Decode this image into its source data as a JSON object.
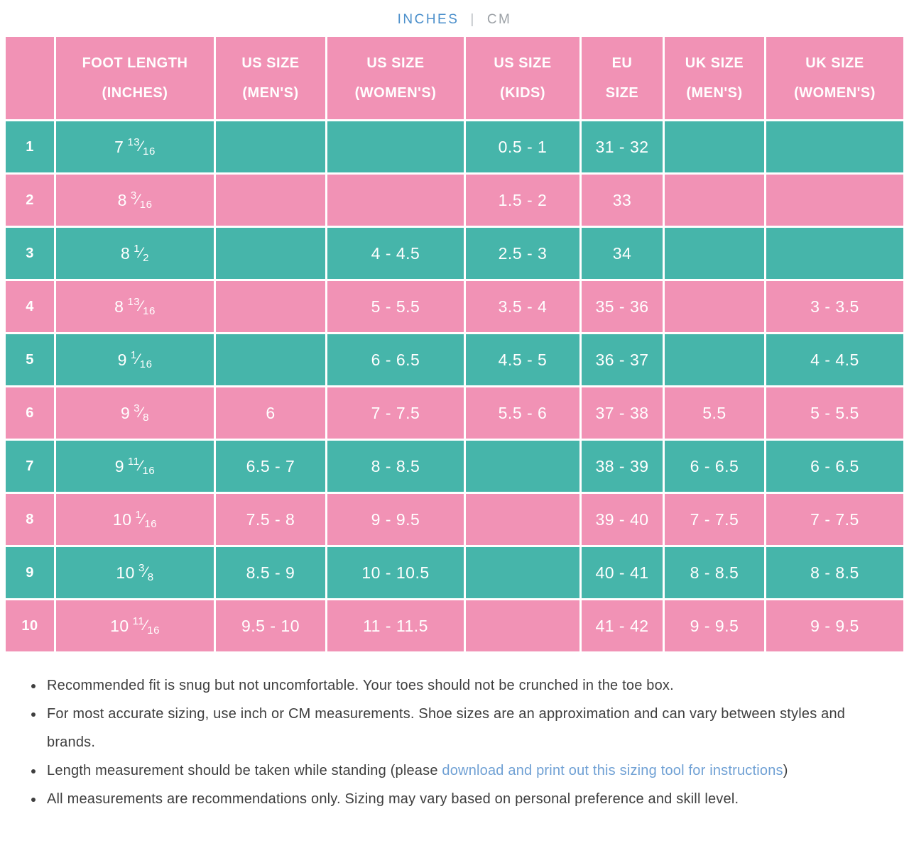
{
  "toggle": {
    "inches": "INCHES",
    "divider": "|",
    "cm": "CM"
  },
  "colors": {
    "pink": "#f192b5",
    "teal": "#46b5aa",
    "link_blue": "#6fa0d4",
    "toggle_active_blue": "#4b8fcb",
    "toggle_inactive_gray": "#9ca1a6",
    "cell_text": "#ffffff",
    "note_text": "#3e3e3e"
  },
  "table": {
    "headers": {
      "row_num": "",
      "foot_length": "FOOT LENGTH\n(INCHES)",
      "us_mens": "US SIZE\n(MEN'S)",
      "us_womens": "US SIZE\n(WOMEN'S)",
      "us_kids": "US SIZE\n(KIDS)",
      "eu": "EU\nSIZE",
      "uk_mens": "UK SIZE\n(MEN'S)",
      "uk_womens": "UK SIZE\n(WOMEN'S)"
    },
    "rows": [
      {
        "n": "1",
        "foot": {
          "w": "7",
          "fn": "13",
          "fd": "16"
        },
        "us_m": "",
        "us_w": "",
        "us_k": "0.5 - 1",
        "eu": "31 - 32",
        "uk_m": "",
        "uk_w": ""
      },
      {
        "n": "2",
        "foot": {
          "w": "8",
          "fn": "3",
          "fd": "16"
        },
        "us_m": "",
        "us_w": "",
        "us_k": "1.5 - 2",
        "eu": "33",
        "uk_m": "",
        "uk_w": ""
      },
      {
        "n": "3",
        "foot": {
          "w": "8",
          "fn": "1",
          "fd": "2"
        },
        "us_m": "",
        "us_w": "4 - 4.5",
        "us_k": "2.5 - 3",
        "eu": "34",
        "uk_m": "",
        "uk_w": ""
      },
      {
        "n": "4",
        "foot": {
          "w": "8",
          "fn": "13",
          "fd": "16"
        },
        "us_m": "",
        "us_w": "5 - 5.5",
        "us_k": "3.5 - 4",
        "eu": "35 - 36",
        "uk_m": "",
        "uk_w": "3 - 3.5"
      },
      {
        "n": "5",
        "foot": {
          "w": "9",
          "fn": "1",
          "fd": "16"
        },
        "us_m": "",
        "us_w": "6 - 6.5",
        "us_k": "4.5 - 5",
        "eu": "36 - 37",
        "uk_m": "",
        "uk_w": "4 - 4.5"
      },
      {
        "n": "6",
        "foot": {
          "w": "9",
          "fn": "3",
          "fd": "8"
        },
        "us_m": "6",
        "us_w": "7 - 7.5",
        "us_k": "5.5 - 6",
        "eu": "37 - 38",
        "uk_m": "5.5",
        "uk_w": "5 - 5.5"
      },
      {
        "n": "7",
        "foot": {
          "w": "9",
          "fn": "11",
          "fd": "16"
        },
        "us_m": "6.5 - 7",
        "us_w": "8 - 8.5",
        "us_k": "",
        "eu": "38 - 39",
        "uk_m": "6 - 6.5",
        "uk_w": "6 - 6.5"
      },
      {
        "n": "8",
        "foot": {
          "w": "10",
          "fn": "1",
          "fd": "16"
        },
        "us_m": "7.5 - 8",
        "us_w": "9 - 9.5",
        "us_k": "",
        "eu": "39 - 40",
        "uk_m": "7 - 7.5",
        "uk_w": "7 - 7.5"
      },
      {
        "n": "9",
        "foot": {
          "w": "10",
          "fn": "3",
          "fd": "8"
        },
        "us_m": "8.5 - 9",
        "us_w": "10 - 10.5",
        "us_k": "",
        "eu": "40 - 41",
        "uk_m": "8 - 8.5",
        "uk_w": "8 - 8.5"
      },
      {
        "n": "10",
        "foot": {
          "w": "10",
          "fn": "11",
          "fd": "16"
        },
        "us_m": "9.5 - 10",
        "us_w": "11 - 11.5",
        "us_k": "",
        "eu": "41 - 42",
        "uk_m": "9 - 9.5",
        "uk_w": "9 - 9.5"
      }
    ]
  },
  "notes": [
    {
      "text": "Recommended fit is snug but not uncomfortable. Your toes should not be crunched in the toe box."
    },
    {
      "text": "For most accurate sizing, use inch or CM measurements. Shoe sizes are an approximation and can vary between styles and brands."
    },
    {
      "text": "Length measurement should be taken while standing (please ",
      "link": "download and print out this sizing tool for instructions",
      "suffix": ")"
    },
    {
      "text": "All measurements are recommendations only. Sizing may vary based on personal preference and skill level."
    }
  ]
}
